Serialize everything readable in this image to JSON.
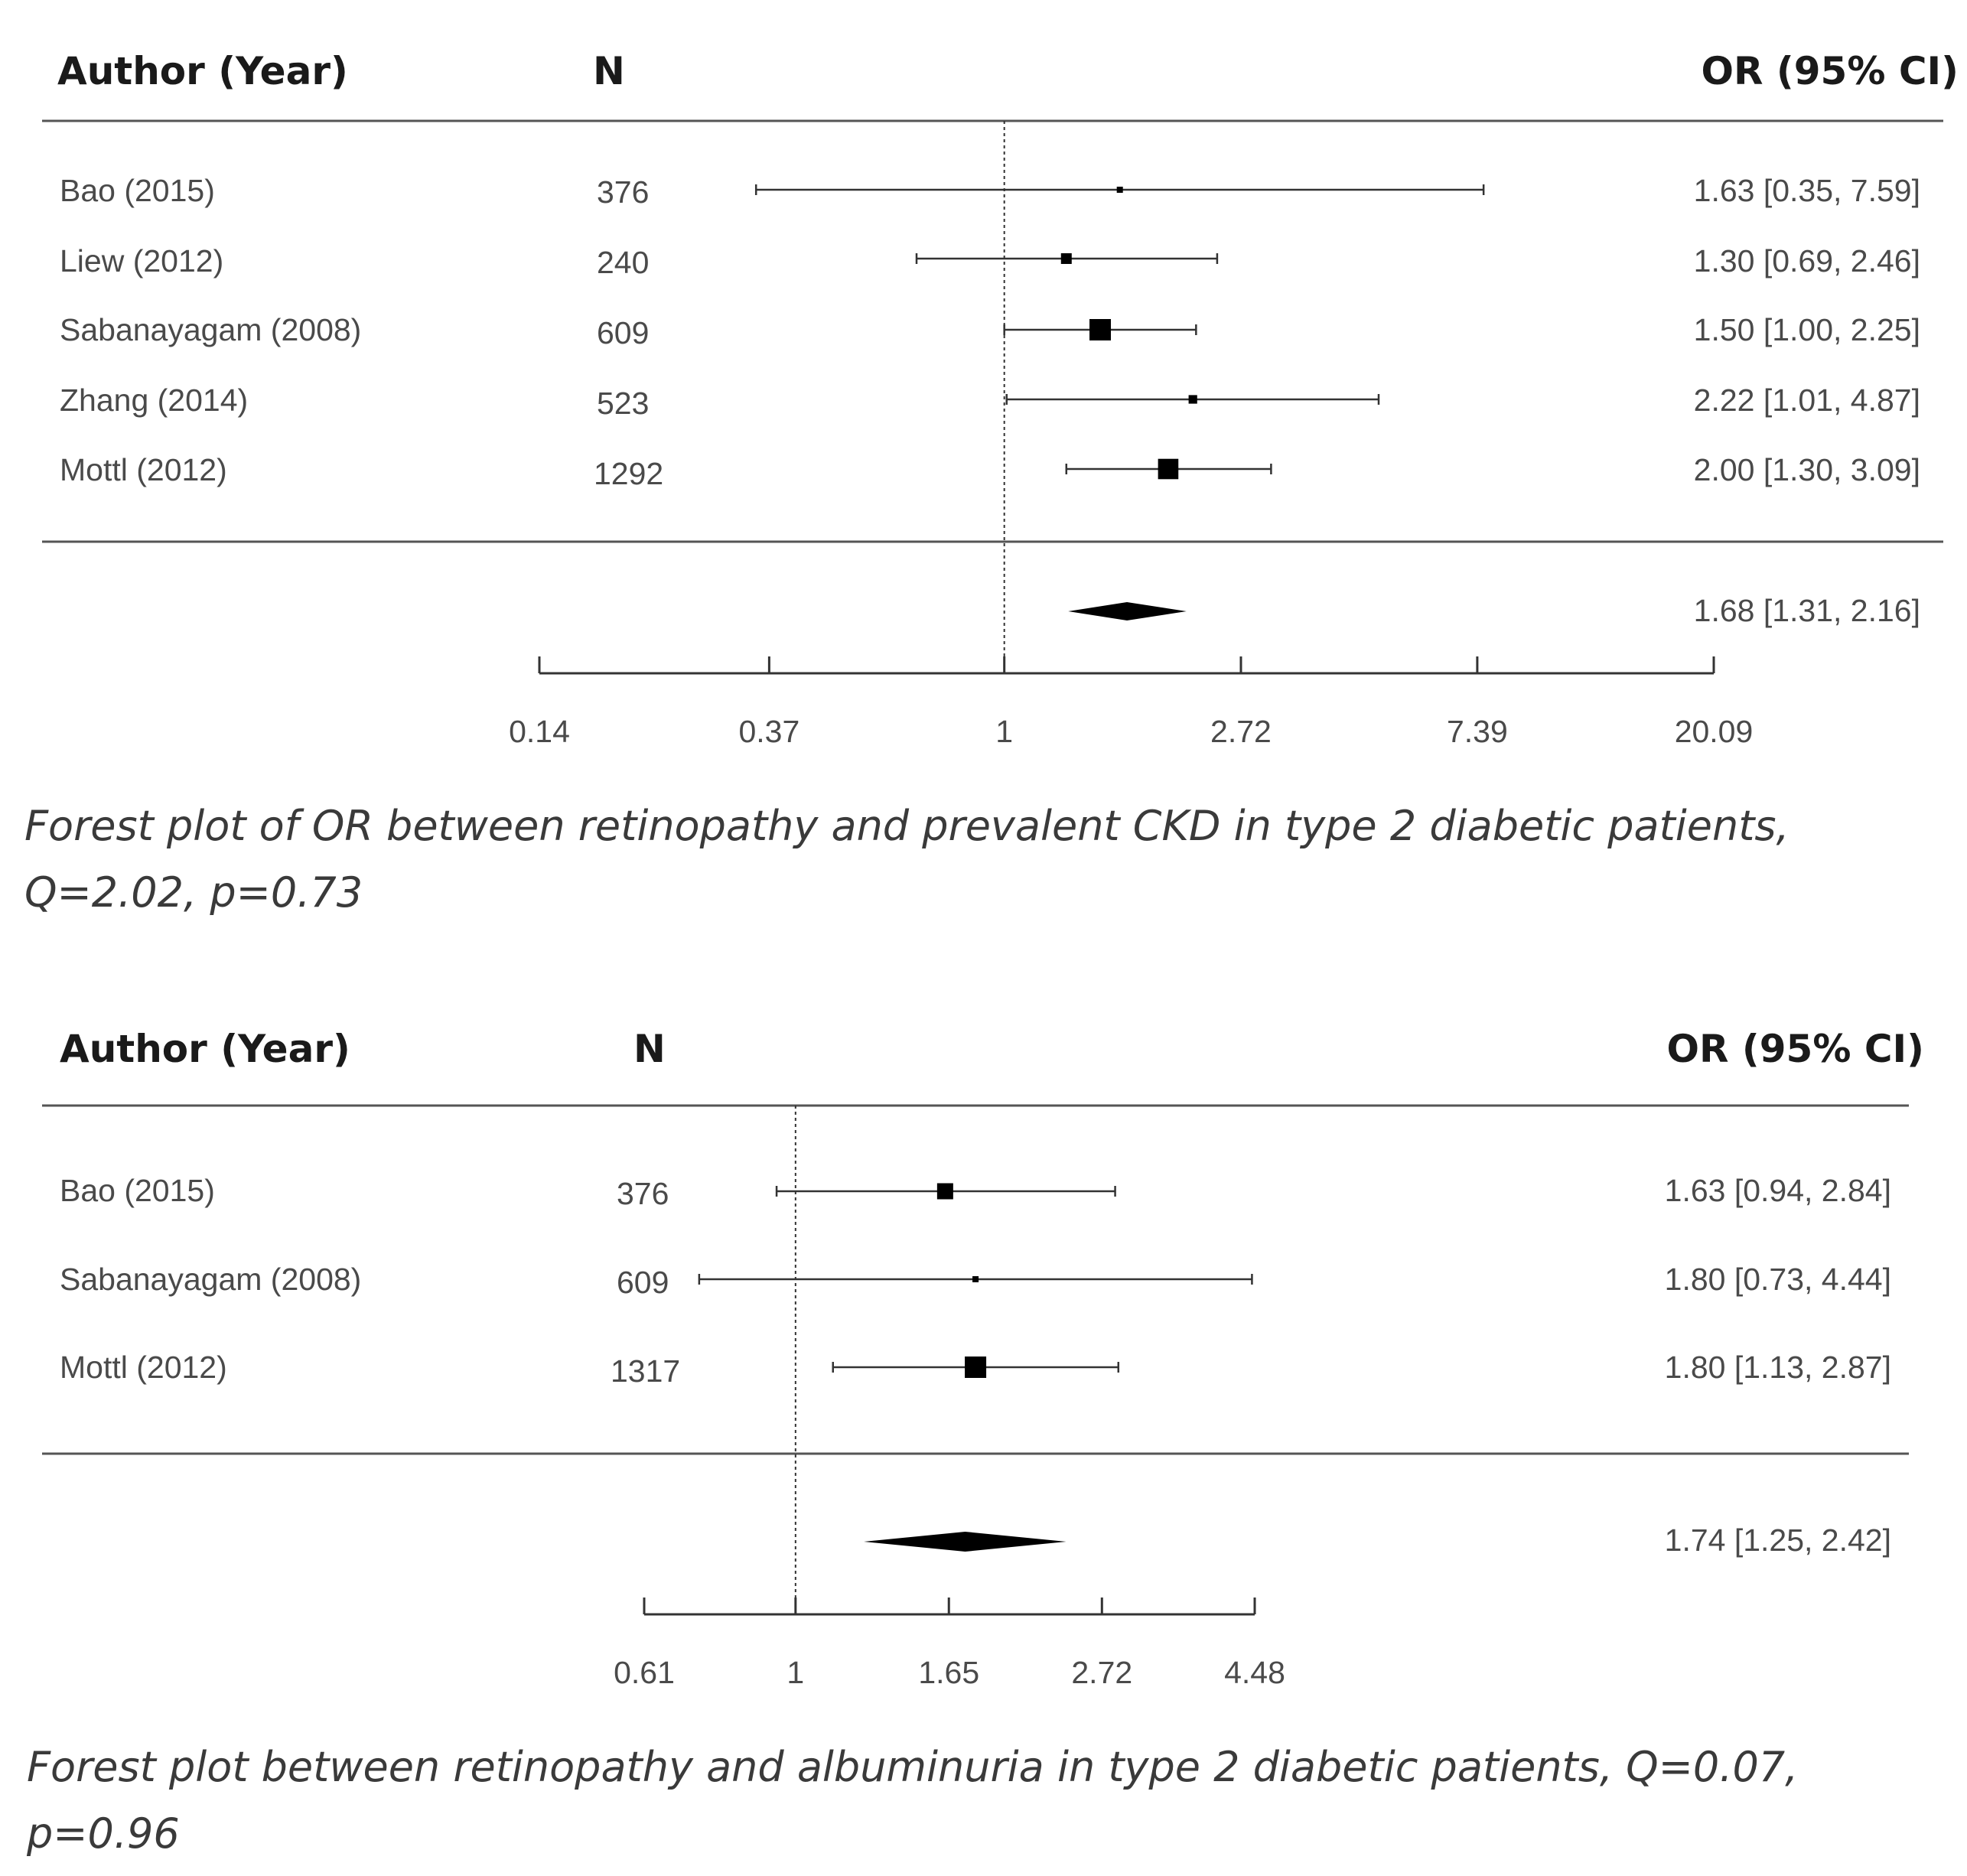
{
  "chart_data": [
    {
      "type": "forest",
      "scale": "log",
      "columns": {
        "author": "Author (Year)",
        "n": "N",
        "or": "OR  (95% CI)"
      },
      "studies": [
        {
          "author": "Bao (2015)",
          "n": "376",
          "or": 1.63,
          "lo": 0.35,
          "hi": 7.59,
          "label": "1.63 [0.35, 7.59]",
          "weight": 0.2
        },
        {
          "author": "Liew (2012)",
          "n": "240",
          "or": 1.3,
          "lo": 0.69,
          "hi": 2.46,
          "label": "1.30 [0.69, 2.46]",
          "weight": 0.5
        },
        {
          "author": "Sabanayagam (2008)",
          "n": "609",
          "or": 1.5,
          "lo": 1.0,
          "hi": 2.25,
          "label": "1.50 [1.00, 2.25]",
          "weight": 1.0
        },
        {
          "author": "Zhang (2014)",
          "n": "523",
          "or": 2.22,
          "lo": 1.01,
          "hi": 4.87,
          "label": "2.22 [1.01, 4.87]",
          "weight": 0.4
        },
        {
          "author": "Mottl (2012)",
          "n": "1292",
          "or": 2.0,
          "lo": 1.3,
          "hi": 3.09,
          "label": "2.00 [1.30, 3.09]",
          "weight": 0.95
        }
      ],
      "pooled": {
        "or": 1.68,
        "lo": 1.31,
        "hi": 2.16,
        "label": "1.68 [1.31, 2.16]"
      },
      "axis_ticks": [
        {
          "value": 0.14,
          "label": "0.14"
        },
        {
          "value": 0.37,
          "label": "0.37"
        },
        {
          "value": 1,
          "label": "1"
        },
        {
          "value": 2.72,
          "label": "2.72"
        },
        {
          "value": 7.39,
          "label": "7.39"
        },
        {
          "value": 20.09,
          "label": "20.09"
        }
      ],
      "reference_line": 1,
      "caption_lines": [
        "Forest plot of OR between retinopathy and prevalent CKD in type 2 diabetic patients,",
        "Q=2.02, p=0.73"
      ]
    },
    {
      "type": "forest",
      "scale": "log",
      "columns": {
        "author": "Author (Year)",
        "n": "N",
        "or": "OR  (95% CI)"
      },
      "studies": [
        {
          "author": "Bao (2015)",
          "n": "376",
          "or": 1.63,
          "lo": 0.94,
          "hi": 2.84,
          "label": "1.63 [0.94, 2.84]",
          "weight": 0.75
        },
        {
          "author": "Sabanayagam (2008)",
          "n": "609",
          "or": 1.8,
          "lo": 0.73,
          "hi": 4.44,
          "label": "1.80 [0.73, 4.44]",
          "weight": 0.2
        },
        {
          "author": "Mottl (2012)",
          "n": "1317",
          "or": 1.8,
          "lo": 1.13,
          "hi": 2.87,
          "label": "1.80 [1.13, 2.87]",
          "weight": 1.0
        }
      ],
      "pooled": {
        "or": 1.74,
        "lo": 1.25,
        "hi": 2.42,
        "label": "1.74 [1.25, 2.42]"
      },
      "axis_ticks": [
        {
          "value": 0.61,
          "label": "0.61"
        },
        {
          "value": 1,
          "label": "1"
        },
        {
          "value": 1.65,
          "label": "1.65"
        },
        {
          "value": 2.72,
          "label": "2.72"
        },
        {
          "value": 4.48,
          "label": "4.48"
        }
      ],
      "reference_line": 1,
      "caption_lines": [
        "Forest plot between retinopathy and albuminuria in type 2 diabetic patients, Q=0.07,",
        "p=0.96"
      ]
    }
  ]
}
